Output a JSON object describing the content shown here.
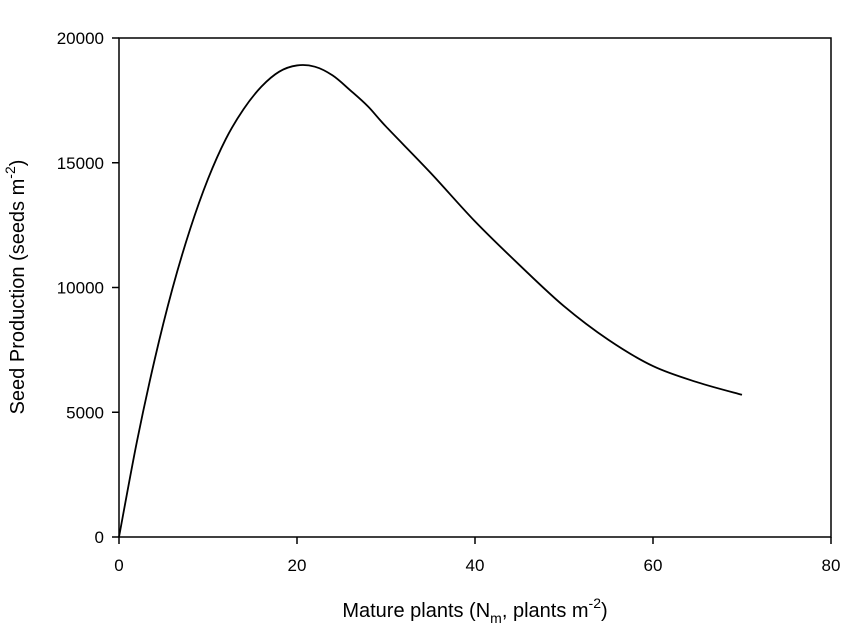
{
  "chart_data": {
    "type": "line",
    "title": "",
    "xlabel": {
      "pre": "Mature plants (N",
      "sub": "m",
      "mid": ", plants m",
      "sup": "-2",
      "post": ")"
    },
    "ylabel": {
      "pre": "Seed Production (seeds m",
      "sup": "-2",
      "post": ")"
    },
    "xlim": [
      0,
      80
    ],
    "ylim": [
      0,
      20000
    ],
    "xticks": [
      0,
      20,
      40,
      60,
      80
    ],
    "yticks": [
      0,
      5000,
      10000,
      15000,
      20000
    ],
    "xtick_labels": [
      "0",
      "20",
      "40",
      "60",
      "80"
    ],
    "ytick_labels": [
      "0",
      "5000",
      "10000",
      "15000",
      "20000"
    ],
    "grid": false,
    "series": [
      {
        "x": [
          0,
          2,
          4,
          6,
          8,
          10,
          12,
          14,
          16,
          18,
          20,
          22,
          24,
          26,
          28,
          30,
          35,
          40,
          45,
          50,
          55,
          60,
          65,
          70
        ],
        "y": [
          0,
          3800,
          7100,
          9950,
          12350,
          14350,
          15950,
          17150,
          18050,
          18650,
          18900,
          18850,
          18500,
          17900,
          17250,
          16450,
          14600,
          12650,
          10900,
          9250,
          7900,
          6850,
          6200,
          5700
        ]
      }
    ]
  }
}
